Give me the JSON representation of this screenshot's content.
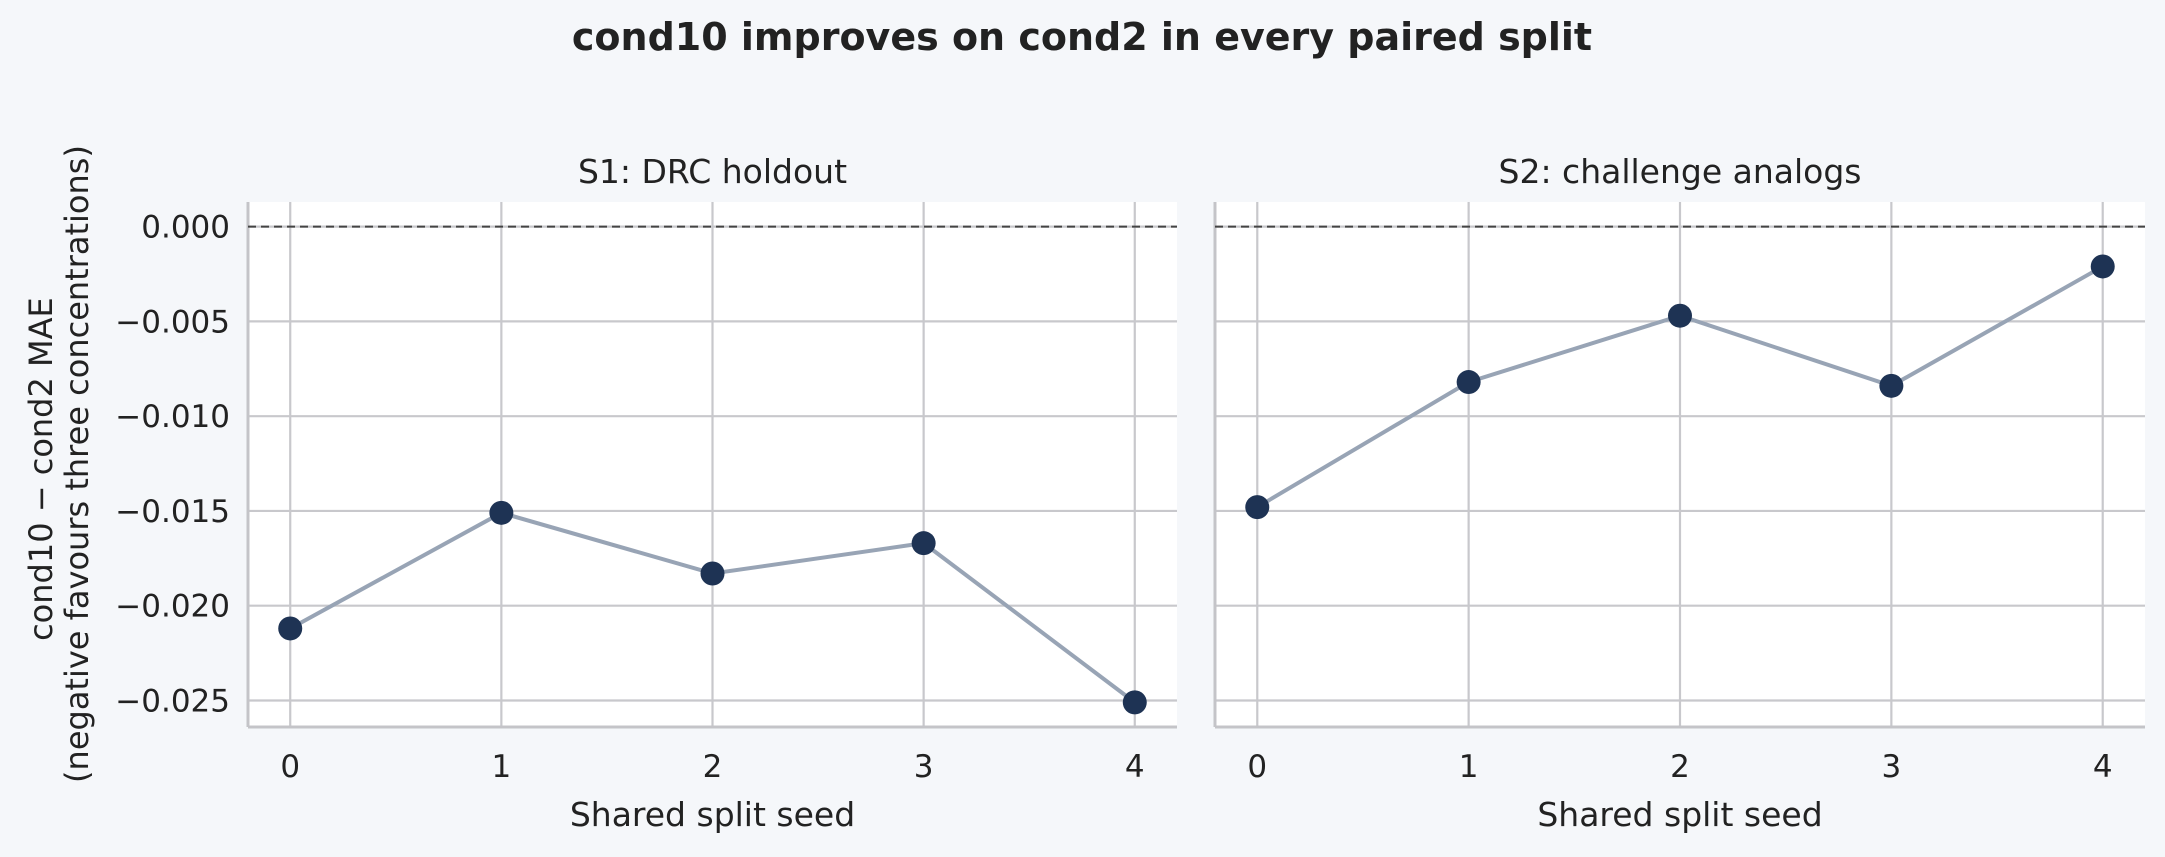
{
  "chart_data": {
    "type": "line",
    "title": "cond10 improves on cond2 in every paired split",
    "ylabel_lines": [
      "cond10 − cond2 MAE",
      "(negative favours three concentrations)"
    ],
    "y_ticks": [
      0.0,
      -0.005,
      -0.01,
      -0.015,
      -0.02,
      -0.025
    ],
    "y_tick_labels": [
      "0.000",
      "−0.005",
      "−0.010",
      "−0.015",
      "−0.020",
      "−0.025"
    ],
    "ylim": [
      -0.0264,
      0.0013
    ],
    "x_ticks": [
      0,
      1,
      2,
      3,
      4
    ],
    "xlim": [
      -0.2,
      4.2
    ],
    "reference_line": {
      "y": 0.0,
      "style": "dashed"
    },
    "grid": true,
    "line_color": "#98a4b5",
    "marker_color": "#1e3354",
    "panels": [
      {
        "title": "S1: DRC holdout",
        "xlabel": "Shared split seed",
        "x": [
          0,
          1,
          2,
          3,
          4
        ],
        "y": [
          -0.0212,
          -0.0151,
          -0.0183,
          -0.0167,
          -0.0251
        ]
      },
      {
        "title": "S2: challenge analogs",
        "xlabel": "Shared split seed",
        "x": [
          0,
          1,
          2,
          3,
          4
        ],
        "y": [
          -0.0148,
          -0.0082,
          -0.0047,
          -0.0084,
          -0.0021
        ]
      }
    ]
  }
}
